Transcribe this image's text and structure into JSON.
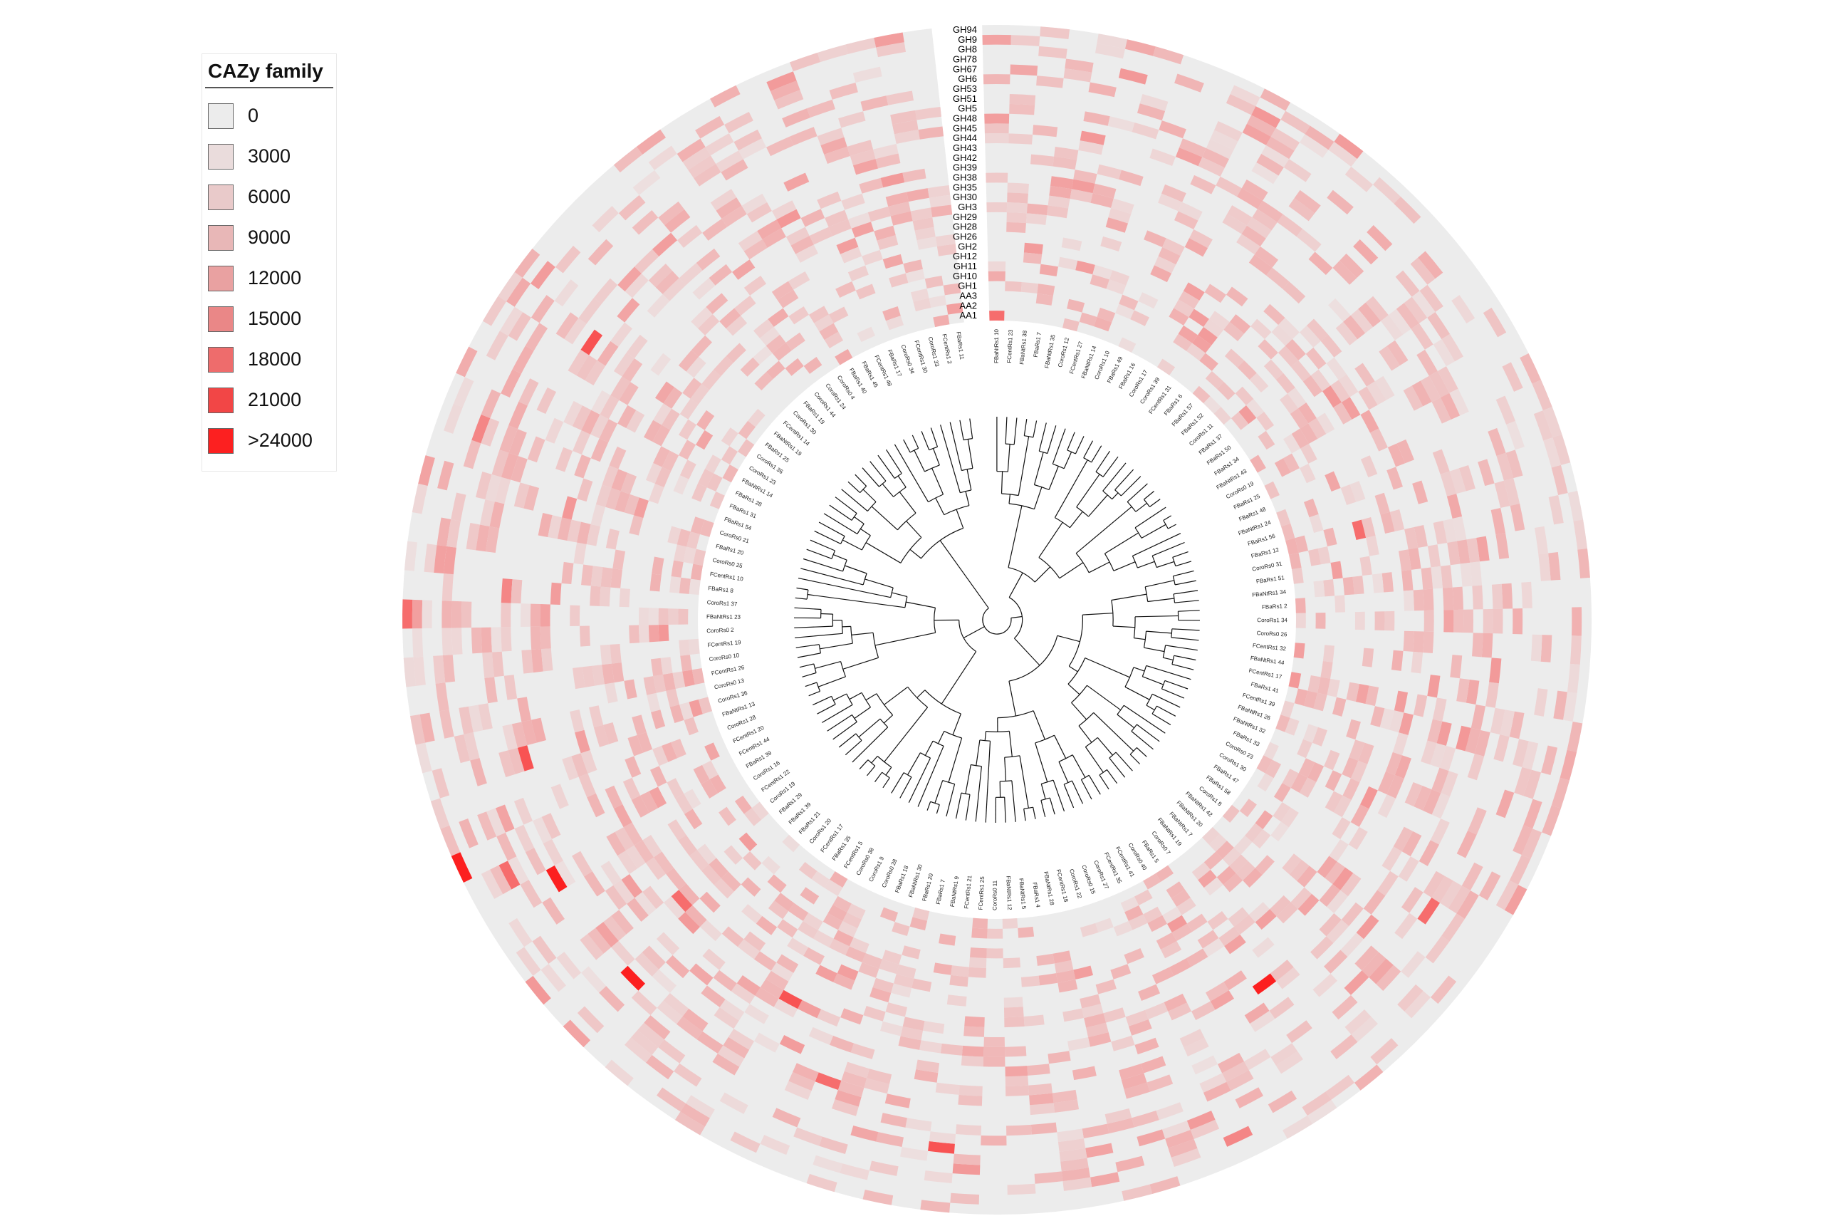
{
  "legend": {
    "title": "CAZy family",
    "items": [
      {
        "label": "0",
        "color": "#ececec"
      },
      {
        "label": "3000",
        "color": "#eadcdc"
      },
      {
        "label": "6000",
        "color": "#e9caca"
      },
      {
        "label": "9000",
        "color": "#e8b7b7"
      },
      {
        "label": "12000",
        "color": "#e9a1a1"
      },
      {
        "label": "15000",
        "color": "#ea8787"
      },
      {
        "label": "18000",
        "color": "#ee6c6c"
      },
      {
        "label": "21000",
        "color": "#f24646"
      },
      {
        "label": ">24000",
        "color": "#fc2020"
      }
    ]
  },
  "chart_data": {
    "type": "heatmap",
    "layout": "circular",
    "title": "",
    "color_scale": {
      "min": 0,
      "max": 24000,
      "low_color": "#ececec",
      "high_color": "#fc2020"
    },
    "families": [
      "GH94",
      "GH9",
      "GH8",
      "GH78",
      "GH67",
      "GH6",
      "GH53",
      "GH51",
      "GH5",
      "GH48",
      "GH45",
      "GH44",
      "GH43",
      "GH42",
      "GH39",
      "GH38",
      "GH35",
      "GH30",
      "GH3",
      "GH29",
      "GH28",
      "GH26",
      "GH2",
      "GH12",
      "GH11",
      "GH10",
      "GH1",
      "AA3",
      "AA2",
      "AA1"
    ],
    "samples": [
      "FBaNtRs1 10",
      "FCentRs1 23",
      "FBaNtRs1 38",
      "FBaRs1 7",
      "FBaNtRs1 35",
      "CoroRs1 12",
      "FCentRs1 27",
      "FBaNtRs1 14",
      "CoroRs1 10",
      "FBaRs1 49",
      "FBaRs1 16",
      "CoroRs1 17",
      "CoroRs1 39",
      "FCentRs1 31",
      "FBaRs1 6",
      "FBaRs1 57",
      "FBaRs1 52",
      "CoroRs1 11",
      "FBaRs1 37",
      "FBaRs1 50",
      "FBaRs1 34",
      "FBaNtRs1 43",
      "CoroRs0 19",
      "FBaRs1 25",
      "FBaRs1 48",
      "FBaNtRs1 24",
      "FBaRs1 56",
      "FBaRs1 12",
      "CoroRs0 31",
      "FBaRs1 51",
      "FBaNtRs1 34",
      "FBaRs1 2",
      "CoroRs1 34",
      "CoroRs0 26",
      "FCentRs1 32",
      "FBaNtRs1 44",
      "FCentRs1 17",
      "FBaRs1 41",
      "FCentRs1 39",
      "FBaNtRs1 26",
      "FBaNtRs1 32",
      "FBaRs1 33",
      "CoroRs0 23",
      "CoroRs1 30",
      "FBaRs1 47",
      "FBaRs1 58",
      "CoroRs1 8",
      "FBaNtRs1 42",
      "FBaNtRs1 20",
      "FBaNtRs1 7",
      "FBaNtRs1 19",
      "CoroRs0 7",
      "FBaRs1 5",
      "CoroRs0 40",
      "FCentRs1 41",
      "FCentRs1 35",
      "CoroRs1 27",
      "CoroRs0 15",
      "CoroRs1 22",
      "FCentRs1 18",
      "FBaNtRs1 28",
      "FBaRs1 4",
      "FBaNtRs1 5",
      "FBaNtRs1 12",
      "CoroRs0 11",
      "FCentRs1 25",
      "FCentRs1 21",
      "FBaNtRs1 9",
      "FBaRs1 7",
      "FBaRs1 20",
      "FBaNtRs1 30",
      "FBaRs1 18",
      "CoroRs0 28",
      "CoroRs1 9",
      "CoroRs0 38",
      "FCentRs1 5",
      "FBaRs1 35",
      "FCentRs1 17",
      "CoroRs1 20",
      "FBaRs1 21",
      "FBaRs1 39",
      "FBaRs1 29",
      "CoroRs1 19",
      "FCentRs1 22",
      "CoroRs1 16",
      "FBaRs1 39",
      "FCentRs1 44",
      "FCentRs1 20",
      "CoroRs1 28",
      "FBaNtRs1 13",
      "CoroRs1 36",
      "CoroRs0 13",
      "FCentRs1 26",
      "CoroRs0 10",
      "FCentRs1 19",
      "CoroRs0 2",
      "FBaNtRs1 23",
      "CoroRs1 37",
      "FBaRs1 8",
      "FCentRs1 10",
      "CoroRs0 25",
      "FBaRs1 20",
      "CoroRs0 21",
      "FBaRs1 54",
      "FBaRs1 31",
      "FBaRs1 28",
      "FBaNtRs1 14",
      "CoroRs1 23",
      "CoroRs1 36",
      "FBaRs1 25",
      "FBaNtRs1 19",
      "FCentRs1 14",
      "CoroRs1 30",
      "FBaRs1 19",
      "CoroRs1 44",
      "CoroRs1 24",
      "CoroRs0 4",
      "FBaRs1 40",
      "FBaRs1 45",
      "FCentRs1 48",
      "FBaRs1 17",
      "CoroRs0 34",
      "FCentRs1 30",
      "CoroRs1 33",
      "FCentRs1 2",
      "FBaRs1 11"
    ],
    "highlights": [
      {
        "sample": "FBaNtRs1 10",
        "family": "AA1",
        "value": 15000
      },
      {
        "sample": "FBaRs1 12",
        "family": "GH2",
        "value": 15000
      },
      {
        "sample": "FBaRs1 47",
        "family": "GH51",
        "value": 15000
      },
      {
        "sample": "CoroRs0 7",
        "family": "GH39",
        "value": 24000
      },
      {
        "sample": "FCentRs1 35",
        "family": "GH8",
        "value": 12000
      },
      {
        "sample": "CoroRs0 38",
        "family": "GH35",
        "value": 18000
      },
      {
        "sample": "FBaRs1 18",
        "family": "GH45",
        "value": 15000
      },
      {
        "sample": "FCentRs1 21",
        "family": "GH53",
        "value": 18000
      },
      {
        "sample": "FBaRs1 39",
        "family": "GH5",
        "value": 24000
      },
      {
        "sample": "FCentRs1 20",
        "family": "GH94",
        "value": 24000
      },
      {
        "sample": "CoroRs1 36",
        "family": "GH45",
        "value": 18000
      },
      {
        "sample": "FBaRs1 29",
        "family": "GH30",
        "value": 15000
      },
      {
        "sample": "FBaNtRs1 23",
        "family": "GH94",
        "value": 15000
      },
      {
        "sample": "FBaRs1 54",
        "family": "GH67",
        "value": 12000
      },
      {
        "sample": "FCentRs1 44",
        "family": "GH67",
        "value": 15000
      },
      {
        "sample": "CoroRs1 37",
        "family": "GH45",
        "value": 12000
      }
    ]
  }
}
